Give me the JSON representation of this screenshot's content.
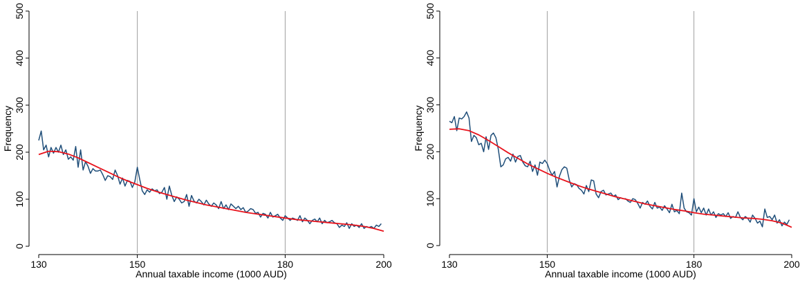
{
  "colors": {
    "observed": "#1f4e79",
    "fitted": "#e8121b",
    "reference_lines": "#a0a0a0",
    "axis": "#000000"
  },
  "chart_data": [
    {
      "type": "line",
      "title": "",
      "xlabel": "Annual taxable income (1000 AUD)",
      "ylabel": "Frequency",
      "xlim": [
        130,
        200
      ],
      "ylim": [
        0,
        500
      ],
      "x_ticks": [
        130,
        150,
        180,
        200
      ],
      "y_ticks": [
        0,
        100,
        200,
        300,
        400,
        500
      ],
      "reference_lines_x": [
        150,
        180
      ],
      "grid": false,
      "legend": "none",
      "series": [
        {
          "role": "observed",
          "x": [
            130,
            130.5,
            131,
            131.5,
            132,
            132.5,
            133,
            133.5,
            134,
            134.5,
            135,
            135.5,
            136,
            136.5,
            137,
            137.5,
            138,
            138.5,
            139,
            139.5,
            140,
            140.5,
            141,
            141.5,
            142,
            142.5,
            143,
            143.5,
            144,
            144.5,
            145,
            145.5,
            146,
            146.5,
            147,
            147.5,
            148,
            148.5,
            149,
            149.5,
            150,
            150.5,
            151,
            151.5,
            152,
            152.5,
            153,
            153.5,
            154,
            154.5,
            155,
            155.5,
            156,
            156.5,
            157,
            157.5,
            158,
            158.5,
            159,
            159.5,
            160,
            160.5,
            161,
            161.5,
            162,
            162.5,
            163,
            163.5,
            164,
            164.5,
            165,
            165.5,
            166,
            166.5,
            167,
            167.5,
            168,
            168.5,
            169,
            169.5,
            170,
            170.5,
            171,
            171.5,
            172,
            172.5,
            173,
            173.5,
            174,
            174.5,
            175,
            175.5,
            176,
            176.5,
            177,
            177.5,
            178,
            178.5,
            179,
            179.5,
            180,
            180.5,
            181,
            181.5,
            182,
            182.5,
            183,
            183.5,
            184,
            184.5,
            185,
            185.5,
            186,
            186.5,
            187,
            187.5,
            188,
            188.5,
            189,
            189.5,
            190,
            190.5,
            191,
            191.5,
            192,
            192.5,
            193,
            193.5,
            194,
            194.5,
            195,
            195.5,
            196,
            196.5,
            197,
            197.5,
            198,
            198.5,
            199,
            199.5
          ],
          "y": [
            225,
            245,
            205,
            215,
            190,
            210,
            198,
            210,
            200,
            215,
            195,
            205,
            185,
            190,
            183,
            212,
            168,
            205,
            162,
            180,
            170,
            155,
            165,
            160,
            160,
            162,
            152,
            140,
            150,
            148,
            142,
            162,
            150,
            132,
            145,
            128,
            140,
            138,
            125,
            137,
            168,
            142,
            118,
            110,
            120,
            115,
            122,
            118,
            120,
            112,
            115,
            125,
            100,
            128,
            108,
            95,
            105,
            100,
            92,
            95,
            110,
            85,
            108,
            96,
            92,
            100,
            95,
            88,
            98,
            90,
            85,
            92,
            88,
            80,
            95,
            80,
            88,
            78,
            90,
            85,
            80,
            85,
            78,
            82,
            72,
            75,
            80,
            78,
            70,
            72,
            62,
            70,
            68,
            60,
            72,
            62,
            65,
            68,
            60,
            55,
            65,
            60,
            55,
            60,
            58,
            55,
            65,
            52,
            60,
            55,
            48,
            55,
            58,
            52,
            60,
            48,
            55,
            50,
            52,
            55,
            50,
            48,
            40,
            45,
            42,
            50,
            38,
            48,
            42,
            45,
            40,
            48,
            38,
            42,
            40,
            42,
            38,
            45,
            42,
            48
          ]
        },
        {
          "role": "fitted",
          "x": [
            130,
            132,
            134,
            136,
            138,
            140,
            142,
            144,
            146,
            148,
            150,
            152,
            154,
            156,
            158,
            160,
            162,
            164,
            166,
            168,
            170,
            172,
            174,
            176,
            178,
            180,
            182,
            184,
            186,
            188,
            190,
            192,
            194,
            196,
            198,
            200
          ],
          "y": [
            195,
            202,
            201,
            196,
            188,
            178,
            168,
            158,
            148,
            139,
            131,
            123,
            116,
            110,
            104,
            98,
            93,
            88,
            84,
            80,
            76,
            72,
            69,
            66,
            63,
            60,
            57,
            55,
            53,
            51,
            49,
            47,
            45,
            42,
            38,
            32
          ]
        }
      ]
    },
    {
      "type": "line",
      "title": "",
      "xlabel": "Annual taxable income (1000 AUD)",
      "ylabel": "Frequency",
      "xlim": [
        130,
        200
      ],
      "ylim": [
        0,
        500
      ],
      "x_ticks": [
        130,
        150,
        180,
        200
      ],
      "y_ticks": [
        0,
        100,
        200,
        300,
        400,
        500
      ],
      "reference_lines_x": [
        150,
        180
      ],
      "grid": false,
      "legend": "none",
      "series": [
        {
          "role": "observed",
          "x": [
            130,
            130.5,
            131,
            131.5,
            132,
            132.5,
            133,
            133.5,
            134,
            134.5,
            135,
            135.5,
            136,
            136.5,
            137,
            137.5,
            138,
            138.5,
            139,
            139.5,
            140,
            140.5,
            141,
            141.5,
            142,
            142.5,
            143,
            143.5,
            144,
            144.5,
            145,
            145.5,
            146,
            146.5,
            147,
            147.5,
            148,
            148.5,
            149,
            149.5,
            150,
            150.5,
            151,
            151.5,
            152,
            152.5,
            153,
            153.5,
            154,
            154.5,
            155,
            155.5,
            156,
            156.5,
            157,
            157.5,
            158,
            158.5,
            159,
            159.5,
            160,
            160.5,
            161,
            161.5,
            162,
            162.5,
            163,
            163.5,
            164,
            164.5,
            165,
            165.5,
            166,
            166.5,
            167,
            167.5,
            168,
            168.5,
            169,
            169.5,
            170,
            170.5,
            171,
            171.5,
            172,
            172.5,
            173,
            173.5,
            174,
            174.5,
            175,
            175.5,
            176,
            176.5,
            177,
            177.5,
            178,
            178.5,
            179,
            179.5,
            180,
            180.5,
            181,
            181.5,
            182,
            182.5,
            183,
            183.5,
            184,
            184.5,
            185,
            185.5,
            186,
            186.5,
            187,
            187.5,
            188,
            188.5,
            189,
            189.5,
            190,
            190.5,
            191,
            191.5,
            192,
            192.5,
            193,
            193.5,
            194,
            194.5,
            195,
            195.5,
            196,
            196.5,
            197,
            197.5,
            198,
            198.5,
            199,
            199.5
          ],
          "y": [
            265,
            262,
            275,
            245,
            272,
            270,
            275,
            285,
            272,
            222,
            235,
            230,
            215,
            218,
            200,
            232,
            205,
            235,
            240,
            230,
            205,
            168,
            172,
            185,
            188,
            180,
            195,
            178,
            190,
            192,
            178,
            170,
            168,
            180,
            158,
            172,
            150,
            178,
            175,
            182,
            175,
            160,
            150,
            158,
            125,
            148,
            162,
            168,
            165,
            140,
            125,
            132,
            130,
            122,
            118,
            110,
            128,
            115,
            140,
            138,
            110,
            102,
            115,
            118,
            108,
            110,
            112,
            105,
            108,
            98,
            102,
            100,
            100,
            95,
            92,
            100,
            98,
            90,
            80,
            92,
            88,
            95,
            84,
            78,
            92,
            80,
            82,
            75,
            85,
            78,
            70,
            88,
            72,
            75,
            68,
            112,
            80,
            72,
            70,
            65,
            100,
            72,
            82,
            70,
            80,
            65,
            78,
            65,
            72,
            60,
            68,
            65,
            68,
            62,
            70,
            58,
            62,
            60,
            72,
            60,
            55,
            62,
            58,
            50,
            65,
            58,
            48,
            52,
            40,
            78,
            60,
            62,
            55,
            65,
            48,
            55,
            42,
            50,
            45,
            55
          ]
        },
        {
          "role": "fitted",
          "x": [
            130,
            132,
            134,
            136,
            138,
            140,
            142,
            144,
            146,
            148,
            150,
            152,
            154,
            156,
            158,
            160,
            162,
            164,
            166,
            168,
            170,
            172,
            174,
            176,
            178,
            180,
            182,
            184,
            186,
            188,
            190,
            192,
            194,
            196,
            198,
            200
          ],
          "y": [
            248,
            249,
            245,
            236,
            224,
            211,
            198,
            186,
            174,
            164,
            154,
            145,
            137,
            129,
            122,
            116,
            110,
            104,
            99,
            94,
            89,
            85,
            81,
            77,
            74,
            70,
            67,
            65,
            63,
            61,
            59,
            58,
            56,
            53,
            48,
            39
          ]
        }
      ]
    }
  ]
}
